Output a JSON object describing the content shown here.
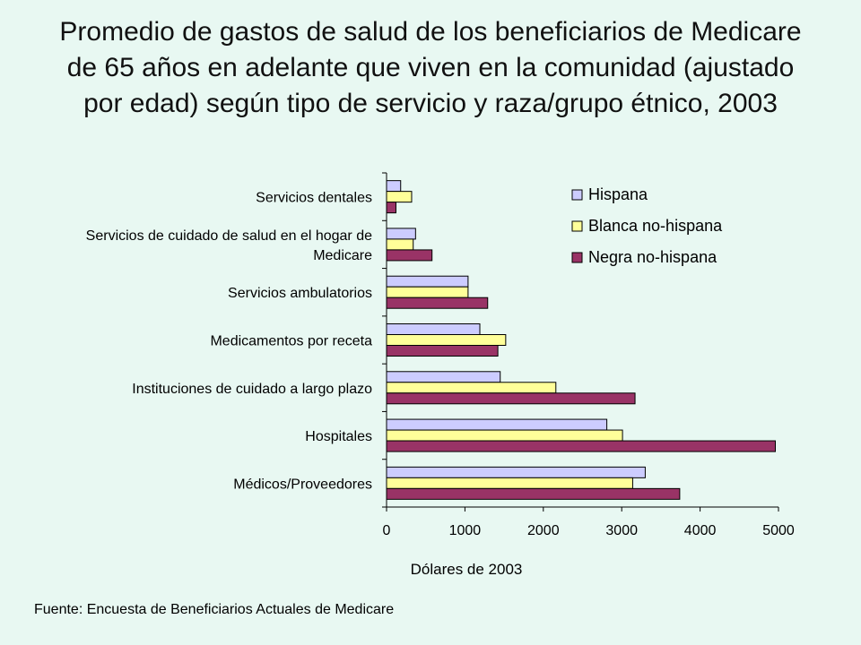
{
  "page": {
    "title": "Promedio de gastos de salud de los beneficiarios de Medicare de 65 años en adelante que viven en la comunidad (ajustado por edad) según tipo de servicio y raza/grupo étnico, 2003",
    "source": "Fuente: Encuesta de Beneficiarios Actuales de Medicare"
  },
  "chart_data": {
    "type": "bar",
    "orientation": "horizontal",
    "title": "Promedio de gastos de salud de los beneficiarios de Medicare de 65 años en adelante que viven en la comunidad (ajustado por edad) según tipo de servicio y raza/grupo étnico, 2003",
    "xlabel": "Dólares de 2003",
    "ylabel": "",
    "xlim": [
      0,
      5000
    ],
    "xticks": [
      0,
      1000,
      2000,
      3000,
      4000,
      5000
    ],
    "grid": false,
    "legend_position": "top-right",
    "categories": [
      [
        "Servicios dentales"
      ],
      [
        "Servicios de cuidado de salud en el hogar de",
        "Medicare"
      ],
      [
        "Servicios ambulatorios"
      ],
      [
        "Medicamentos por receta"
      ],
      [
        "Instituciones de cuidado a largo plazo"
      ],
      [
        "Hospitales"
      ],
      [
        "Médicos/Proveedores"
      ]
    ],
    "series": [
      {
        "name": "Hispana",
        "color": "#ccccff",
        "values": [
          180,
          370,
          1040,
          1190,
          1450,
          2810,
          3300
        ]
      },
      {
        "name": "Blanca no-hispana",
        "color": "#ffff99",
        "values": [
          320,
          340,
          1040,
          1520,
          2160,
          3010,
          3140
        ]
      },
      {
        "name": "Negra no-hispana",
        "color": "#993366",
        "values": [
          120,
          580,
          1290,
          1420,
          3170,
          4960,
          3740
        ]
      }
    ]
  }
}
